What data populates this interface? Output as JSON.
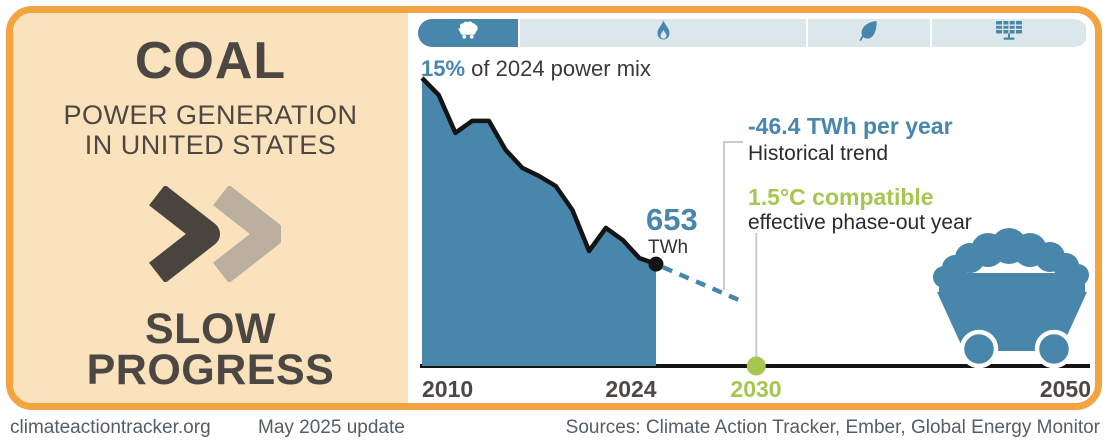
{
  "left_panel": {
    "title": "COAL",
    "subtitle_line1": "POWER GENERATION",
    "subtitle_line2": "IN UNITED STATES",
    "rating_line1": "SLOW",
    "rating_line2": "PROGRESS"
  },
  "tabs": [
    {
      "name": "coal",
      "icon": "coal-cart-icon",
      "active": true
    },
    {
      "name": "gas",
      "icon": "flame-icon",
      "active": false
    },
    {
      "name": "bioenergy",
      "icon": "leaf-icon",
      "active": false
    },
    {
      "name": "solar",
      "icon": "solar-panel-icon",
      "active": false
    }
  ],
  "stat": {
    "value": "15%",
    "text": " of 2024 power mix"
  },
  "annotations": {
    "current_value": "653",
    "current_unit": "TWh",
    "trend_value": "-46.4 TWh per year",
    "trend_label": "Historical trend",
    "compat_value": "1.5°C compatible",
    "compat_label": "effective phase-out year"
  },
  "chart_data": {
    "type": "area",
    "title": "Coal power generation in United States",
    "unit": "TWh",
    "x": [
      2010,
      2011,
      2012,
      2013,
      2014,
      2015,
      2016,
      2017,
      2018,
      2019,
      2020,
      2021,
      2022,
      2023,
      2024
    ],
    "values": [
      1846,
      1737,
      1494,
      1571,
      1571,
      1385,
      1270,
      1218,
      1154,
      1000,
      737,
      885,
      808,
      692,
      653
    ],
    "ylim": [
      0,
      1846
    ],
    "x_range": [
      2010,
      2050
    ],
    "x_ticks": [
      "2010",
      "2024",
      "2030",
      "2050"
    ],
    "current_point": {
      "year": 2024,
      "value": 653
    },
    "trend_per_year": -46.4,
    "projection_end_year": 2029,
    "phase_out": {
      "year": 2030,
      "value": 0
    },
    "share_of_power_mix_2024": "15%",
    "grid": false,
    "legend": false
  },
  "footer": {
    "site": "climateactiontracker.org",
    "update": "May 2025 update",
    "sources": "Sources: Climate Action Tracker, Ember, Global Energy Monitor"
  },
  "colors": {
    "accent_blue": "#4886AC",
    "green": "#A6C64F",
    "orange_border": "#F1A440",
    "panel_bg": "#FAE3BC",
    "tab_inactive": "#DCE7EC",
    "dark_text": "#4C4743",
    "footer_text": "#545E66"
  }
}
